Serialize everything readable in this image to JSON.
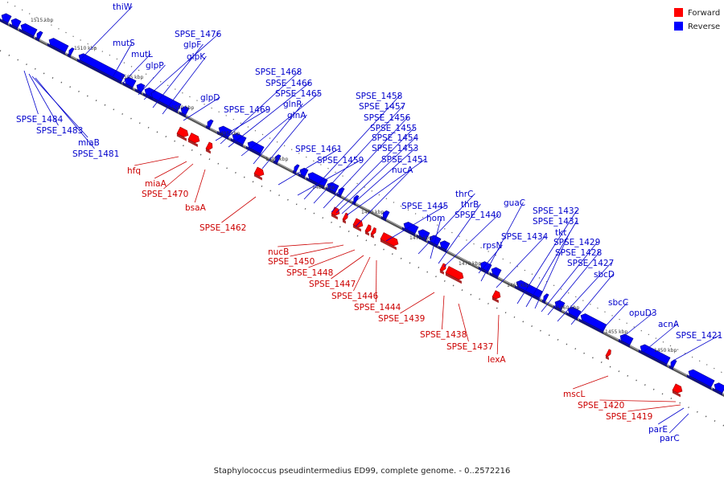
{
  "legend": {
    "forward": {
      "label": "Forward",
      "color": "#ff0000"
    },
    "reverse": {
      "label": "Reverse",
      "color": "#0000ff"
    }
  },
  "caption": "Staphylococcus pseudintermedius ED99, complete genome. - 0..2572216",
  "ticks": [
    "1515 kbp",
    "1510 kbp",
    "1505 kbp",
    "1500 kbp",
    "1495 kbp",
    "1490 kbp",
    "1485 kbp",
    "1480 kbp",
    "1475 kbp",
    "1470 kbp",
    "1465 kbp",
    "1460 kbp",
    "1455 kbp",
    "1450 kbp"
  ],
  "reverse_labels": [
    "thiW",
    "mutS",
    "mutL",
    "glpP",
    "SPSE_1476",
    "glpF",
    "glpK",
    "glpD",
    "SPSE_1484",
    "SPSE_1483",
    "miaB",
    "SPSE_1481",
    "SPSE_1468",
    "SPSE_1466",
    "SPSE_1465",
    "SPSE_1469",
    "glnR",
    "glnA",
    "SPSE_1461",
    "SPSE_1459",
    "SPSE_1458",
    "SPSE_1457",
    "SPSE_1456",
    "SPSE_1455",
    "SPSE_1454",
    "SPSE_1453",
    "SPSE_1451",
    "nucA",
    "SPSE_1445",
    "thrC",
    "hom",
    "thrB",
    "SPSE_1440",
    "guaC",
    "rpsN",
    "SPSE_1434",
    "SPSE_1432",
    "SPSE_1431",
    "tkt",
    "SPSE_1429",
    "SPSE_1428",
    "SPSE_1427",
    "sbcD",
    "sbcC",
    "opuD3",
    "acnA",
    "SPSE_1421",
    "parE",
    "parC"
  ],
  "forward_labels": [
    "hfq",
    "miaA",
    "SPSE_1470",
    "bsaA",
    "SPSE_1462",
    "nucB",
    "SPSE_1450",
    "SPSE_1448",
    "SPSE_1447",
    "SPSE_1446",
    "SPSE_1444",
    "SPSE_1439",
    "SPSE_1438",
    "SPSE_1437",
    "lexA",
    "mscL",
    "SPSE_1420",
    "SPSE_1419"
  ]
}
